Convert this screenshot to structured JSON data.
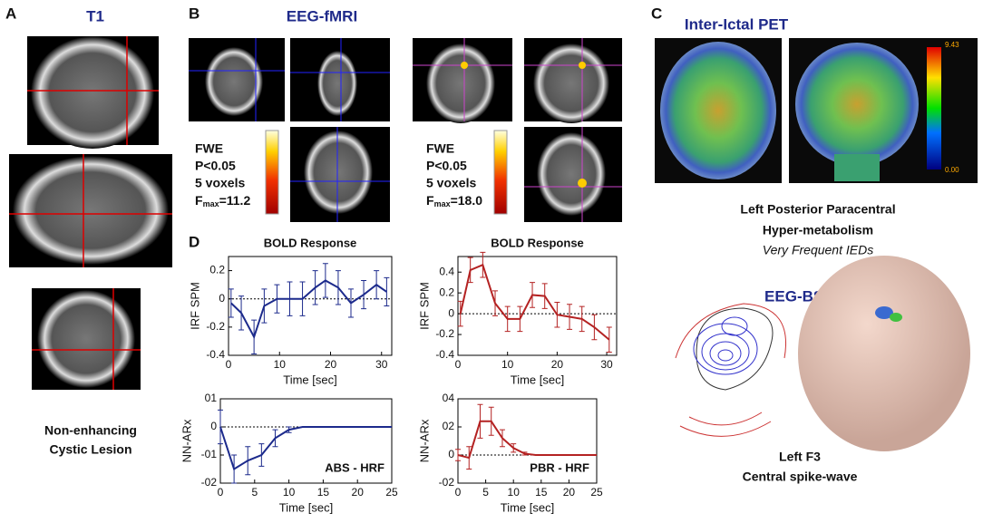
{
  "panels": {
    "A": {
      "label": "A",
      "title": "T1",
      "caption": [
        "Non-enhancing",
        "Cystic Lesion"
      ]
    },
    "B": {
      "label": "B",
      "title": "EEG-fMRI",
      "stats": [
        {
          "lines": [
            "FWE",
            "P<0.05",
            "5 voxels"
          ],
          "f": "F",
          "sub": "max",
          "fval": "=11.2"
        },
        {
          "lines": [
            "FWE",
            "P<0.05",
            "5 voxels"
          ],
          "f": "F",
          "sub": "max",
          "fval": "=18.0"
        }
      ]
    },
    "C": {
      "label": "C",
      "title": "Inter-Ictal PET",
      "scale_max": "9.43",
      "scale_min": "0.00",
      "caption": [
        "Left Posterior  Paracentral",
        "Hyper-metabolism"
      ],
      "note": "Very Frequent IEDs",
      "subtitle": "EEG-BSI",
      "caption2": [
        "Left F3",
        "Central spike-wave"
      ]
    },
    "D": {
      "label": "D"
    }
  },
  "chart_data": [
    {
      "type": "line",
      "title": "BOLD Response",
      "x_label": "Time [sec]",
      "y_label": "IRF SPM",
      "color": "#1c2a8c",
      "x": [
        0.5,
        2.5,
        5,
        7,
        9.5,
        12,
        14.5,
        17,
        19,
        21.5,
        24,
        26.5,
        29,
        31
      ],
      "values": [
        -0.03,
        -0.1,
        -0.27,
        -0.05,
        0,
        0,
        0,
        0.08,
        0.13,
        0.08,
        -0.03,
        0.03,
        0.1,
        0.05
      ],
      "errors": [
        0.1,
        0.12,
        0.12,
        0.12,
        0.1,
        0.12,
        0.12,
        0.12,
        0.12,
        0.12,
        0.1,
        0.1,
        0.1,
        0.1
      ],
      "xlim": [
        0,
        32
      ],
      "xticks": [
        0,
        10,
        20,
        30
      ],
      "ylim": [
        -0.4,
        0.3
      ],
      "yticks": [
        -0.4,
        -0.2,
        0,
        0.2
      ]
    },
    {
      "type": "line",
      "title": "BOLD Response",
      "x_label": "Time [sec]",
      "y_label": "IRF SPM",
      "color": "#b42222",
      "x": [
        0.5,
        2.5,
        5,
        7.5,
        10,
        12.5,
        15,
        17.5,
        20,
        22.5,
        25,
        27.5,
        30.5
      ],
      "values": [
        0,
        0.42,
        0.47,
        0.1,
        -0.05,
        -0.05,
        0.18,
        0.17,
        -0.01,
        -0.03,
        -0.05,
        -0.13,
        -0.25
      ],
      "errors": [
        0.12,
        0.12,
        0.12,
        0.12,
        0.12,
        0.12,
        0.12,
        0.12,
        0.12,
        0.12,
        0.12,
        0.12,
        0.12
      ],
      "xlim": [
        0,
        32
      ],
      "xticks": [
        0,
        10,
        20,
        30
      ],
      "ylim": [
        -0.4,
        0.55
      ],
      "yticks": [
        -0.4,
        -0.2,
        0,
        0.2,
        0.4
      ]
    },
    {
      "type": "line",
      "x_label": "Time [sec]",
      "y_label": "NN-ARx",
      "annotation": "ABS - HRF",
      "color": "#1c2a8c",
      "x": [
        0,
        2,
        4,
        6,
        8,
        10,
        12,
        14,
        16,
        18,
        20,
        22,
        25
      ],
      "values": [
        0,
        -0.015,
        -0.012,
        -0.01,
        -0.004,
        -0.001,
        0,
        0,
        0,
        0,
        0,
        0,
        0
      ],
      "errors": [
        0.006,
        0.005,
        0.005,
        0.004,
        0.003,
        0.001,
        0,
        0,
        0,
        0,
        0,
        0,
        0
      ],
      "xlim": [
        0,
        25
      ],
      "xticks": [
        0,
        5,
        10,
        15,
        20,
        25
      ],
      "ylim": [
        -0.02,
        0.01
      ],
      "yticks": [
        {
          "value": -0.02,
          "label": "-02"
        },
        {
          "value": -0.01,
          "label": "-01"
        },
        0,
        {
          "value": 0.01,
          "label": "01"
        }
      ]
    },
    {
      "type": "line",
      "x_label": "Time [sec]",
      "y_label": "NN-ARx",
      "annotation": "PBR - HRF",
      "color": "#b42222",
      "x": [
        0,
        2,
        4,
        6,
        8,
        10,
        12,
        14,
        16,
        18,
        20,
        22,
        25
      ],
      "values": [
        0,
        -0.002,
        0.024,
        0.024,
        0.012,
        0.005,
        0.001,
        0,
        0,
        0,
        0,
        0,
        0
      ],
      "errors": [
        0.004,
        0.008,
        0.012,
        0.01,
        0.006,
        0.003,
        0.001,
        0,
        0,
        0,
        0,
        0,
        0
      ],
      "xlim": [
        0,
        25
      ],
      "xticks": [
        0,
        5,
        10,
        15,
        20,
        25
      ],
      "ylim": [
        -0.02,
        0.04
      ],
      "yticks": [
        {
          "value": -0.02,
          "label": "-02"
        },
        0,
        {
          "value": 0.02,
          "label": "02"
        },
        {
          "value": 0.04,
          "label": "04"
        }
      ]
    }
  ]
}
